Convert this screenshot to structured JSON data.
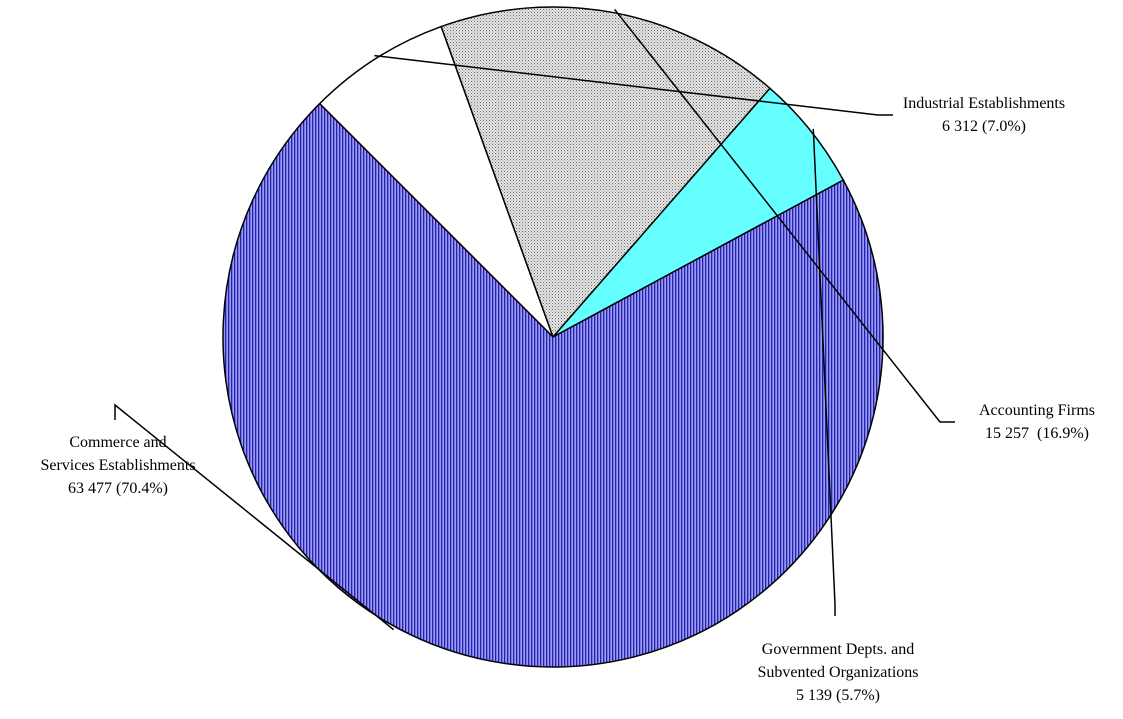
{
  "chart_data": {
    "type": "pie",
    "slices": [
      {
        "label_lines": [
          "Industrial Establishments",
          "6 312 (7.0%)"
        ],
        "category": "Industrial Establishments",
        "value": 6312,
        "percent": 7.0,
        "color": "#ffffff",
        "pattern": "none"
      },
      {
        "label_lines": [
          "Accounting Firms",
          "15 257  (16.9%)"
        ],
        "category": "Accounting Firms",
        "value": 15257,
        "percent": 16.9,
        "color": "#c8c8c8",
        "pattern": "dots"
      },
      {
        "label_lines": [
          "Government Depts. and",
          "Subvented Organizations",
          "5 139 (5.7%)"
        ],
        "category": "Government Depts. and Subvented Organizations",
        "value": 5139,
        "percent": 5.7,
        "color": "#66ffff",
        "pattern": "none"
      },
      {
        "label_lines": [
          "Commerce and",
          "Services Establishments",
          "63 477 (70.4%)"
        ],
        "category": "Commerce and Services Establishments",
        "value": 63477,
        "percent": 70.4,
        "color": "#7777ee",
        "pattern": "vertical-lines"
      }
    ]
  }
}
